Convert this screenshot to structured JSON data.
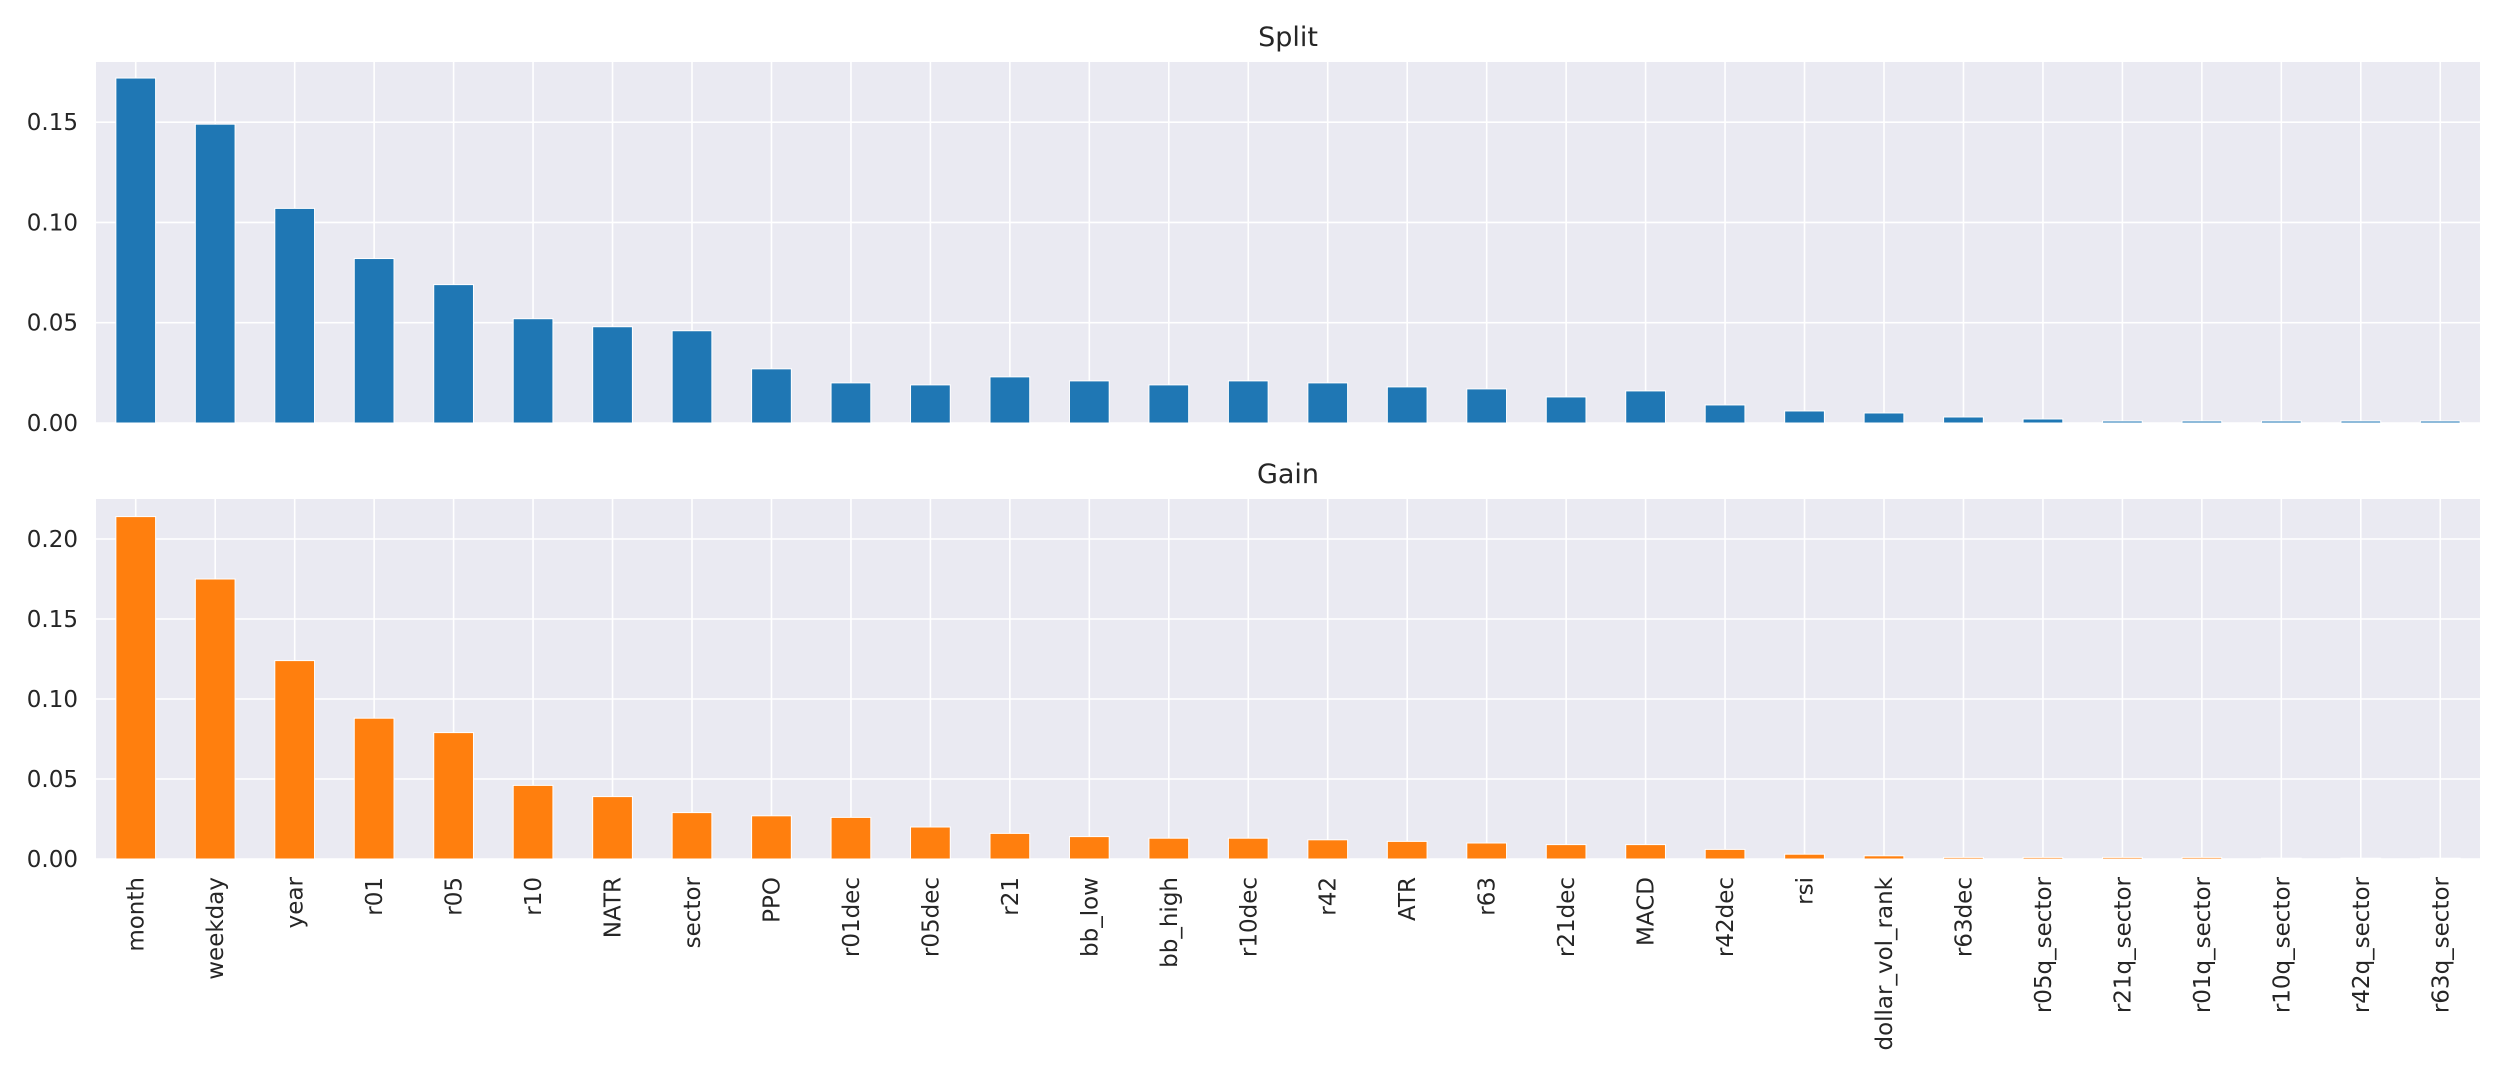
{
  "chart_data": [
    {
      "type": "bar",
      "title": "Split",
      "xlabel": "",
      "ylabel": "",
      "grid": true,
      "color": "#1f77b4",
      "ylim": [
        0,
        0.18
      ],
      "yticks": [
        0.0,
        0.05,
        0.1,
        0.15
      ],
      "ytick_labels": [
        "0.00",
        "0.05",
        "0.10",
        "0.15"
      ],
      "categories": [
        "month",
        "weekday",
        "year",
        "r01",
        "r05",
        "r10",
        "NATR",
        "sector",
        "PPO",
        "r01dec",
        "r05dec",
        "r21",
        "bb_low",
        "bb_high",
        "r10dec",
        "r42",
        "ATR",
        "r63",
        "r21dec",
        "MACD",
        "r42dec",
        "rsi",
        "dollar_vol_rank",
        "r63dec",
        "r05q_sector",
        "r21q_sector",
        "r01q_sector",
        "r10q_sector",
        "r42q_sector",
        "r63q_sector"
      ],
      "values": [
        0.172,
        0.149,
        0.107,
        0.082,
        0.069,
        0.052,
        0.048,
        0.046,
        0.027,
        0.02,
        0.019,
        0.023,
        0.021,
        0.019,
        0.021,
        0.02,
        0.018,
        0.017,
        0.013,
        0.016,
        0.009,
        0.006,
        0.005,
        0.003,
        0.002,
        0.001,
        0.001,
        0.001,
        0.001,
        0.001
      ]
    },
    {
      "type": "bar",
      "title": "Gain",
      "xlabel": "",
      "ylabel": "",
      "grid": true,
      "color": "#ff7f0e",
      "ylim": [
        0,
        0.225
      ],
      "yticks": [
        0.0,
        0.05,
        0.1,
        0.15,
        0.2
      ],
      "ytick_labels": [
        "0.00",
        "0.05",
        "0.10",
        "0.15",
        "0.20"
      ],
      "categories": [
        "month",
        "weekday",
        "year",
        "r01",
        "r05",
        "r10",
        "NATR",
        "sector",
        "PPO",
        "r01dec",
        "r05dec",
        "r21",
        "bb_low",
        "bb_high",
        "r10dec",
        "r42",
        "ATR",
        "r63",
        "r21dec",
        "MACD",
        "r42dec",
        "rsi",
        "dollar_vol_rank",
        "r63dec",
        "r05q_sector",
        "r21q_sector",
        "r01q_sector",
        "r10q_sector",
        "r42q_sector",
        "r63q_sector"
      ],
      "values": [
        0.214,
        0.175,
        0.124,
        0.088,
        0.079,
        0.046,
        0.039,
        0.029,
        0.027,
        0.026,
        0.02,
        0.016,
        0.014,
        0.013,
        0.013,
        0.012,
        0.011,
        0.01,
        0.009,
        0.009,
        0.006,
        0.003,
        0.002,
        0.001,
        0.001,
        0.001,
        0.001,
        0.0005,
        0.0005,
        0.0005
      ]
    }
  ]
}
